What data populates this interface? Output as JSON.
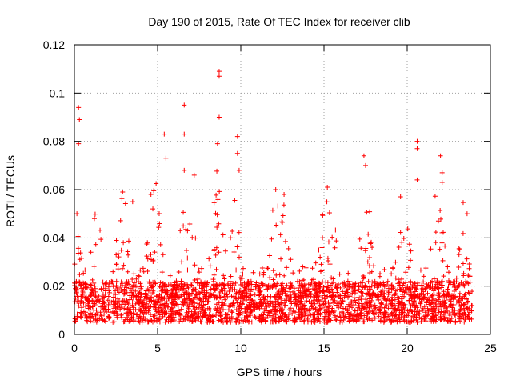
{
  "chart_data": {
    "type": "scatter",
    "title": "Day 190 of 2015, Rate Of TEC Index for receiver clib",
    "xlabel": "GPS time / hours",
    "ylabel": "ROTI / TECUs",
    "xlim": [
      0,
      25
    ],
    "ylim": [
      0,
      0.12
    ],
    "xticks": [
      0,
      5,
      10,
      15,
      20,
      25
    ],
    "xtick_labels": [
      "0",
      "5",
      "10",
      "15",
      "20",
      "25"
    ],
    "yticks": [
      0,
      0.02,
      0.04,
      0.06,
      0.08,
      0.1,
      0.12
    ],
    "ytick_labels": [
      "0",
      "0.02",
      "0.04",
      "0.06",
      "0.08",
      "0.1",
      "0.12"
    ],
    "grid": true,
    "marker": "plus",
    "color": "#ff0000",
    "series": [
      {
        "name": "ROTI",
        "description": "dense band of points between ~0.005 and ~0.03 TECU/s across 0-23.9 h, with spikes",
        "x_range": [
          0,
          23.9
        ],
        "baseline_range": [
          0.005,
          0.03
        ],
        "peaks": [
          {
            "x": 0.25,
            "y": 0.094
          },
          {
            "x": 0.3,
            "y": 0.089
          },
          {
            "x": 0.25,
            "y": 0.079
          },
          {
            "x": 0.15,
            "y": 0.05
          },
          {
            "x": 1.2,
            "y": 0.048
          },
          {
            "x": 2.9,
            "y": 0.059
          },
          {
            "x": 3.5,
            "y": 0.055
          },
          {
            "x": 4.6,
            "y": 0.058
          },
          {
            "x": 5.4,
            "y": 0.083
          },
          {
            "x": 5.5,
            "y": 0.073
          },
          {
            "x": 6.6,
            "y": 0.095
          },
          {
            "x": 6.6,
            "y": 0.083
          },
          {
            "x": 6.6,
            "y": 0.068
          },
          {
            "x": 7.2,
            "y": 0.066
          },
          {
            "x": 8.7,
            "y": 0.109
          },
          {
            "x": 8.7,
            "y": 0.107
          },
          {
            "x": 8.7,
            "y": 0.09
          },
          {
            "x": 8.6,
            "y": 0.079
          },
          {
            "x": 9.8,
            "y": 0.082
          },
          {
            "x": 9.8,
            "y": 0.075
          },
          {
            "x": 9.9,
            "y": 0.068
          },
          {
            "x": 12.1,
            "y": 0.06
          },
          {
            "x": 12.6,
            "y": 0.058
          },
          {
            "x": 15.2,
            "y": 0.061
          },
          {
            "x": 17.4,
            "y": 0.074
          },
          {
            "x": 17.5,
            "y": 0.07
          },
          {
            "x": 19.6,
            "y": 0.057
          },
          {
            "x": 20.6,
            "y": 0.08
          },
          {
            "x": 20.6,
            "y": 0.077
          },
          {
            "x": 20.6,
            "y": 0.064
          },
          {
            "x": 22.0,
            "y": 0.074
          },
          {
            "x": 22.1,
            "y": 0.067
          },
          {
            "x": 22.1,
            "y": 0.063
          },
          {
            "x": 23.6,
            "y": 0.05
          }
        ]
      }
    ]
  }
}
